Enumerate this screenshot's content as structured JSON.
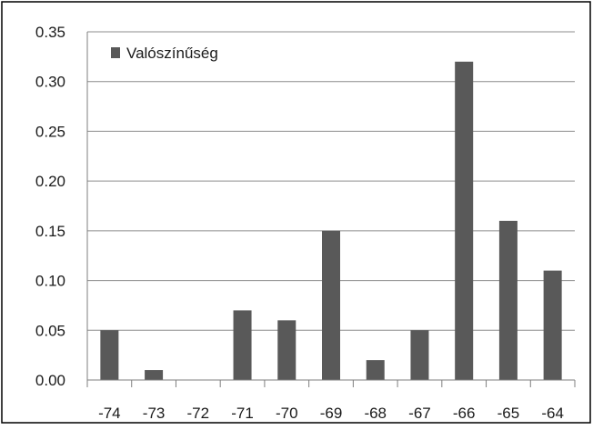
{
  "chart_data": {
    "type": "bar",
    "categories": [
      "-74",
      "-73",
      "-72",
      "-71",
      "-70",
      "-69",
      "-68",
      "-67",
      "-66",
      "-65",
      "-64"
    ],
    "series": [
      {
        "name": "Valószínűség",
        "values": [
          0.05,
          0.01,
          0.0,
          0.07,
          0.06,
          0.15,
          0.02,
          0.05,
          0.32,
          0.16,
          0.11
        ]
      }
    ],
    "y_ticks": [
      "0.00",
      "0.05",
      "0.10",
      "0.15",
      "0.20",
      "0.25",
      "0.30",
      "0.35"
    ],
    "ylim": [
      0,
      0.35
    ],
    "grid": true,
    "legend_position": "top-left",
    "colors": {
      "bar": "#595959",
      "grid": "#8c8c8c",
      "axis": "#7f7f7f",
      "border": "#000000"
    }
  }
}
